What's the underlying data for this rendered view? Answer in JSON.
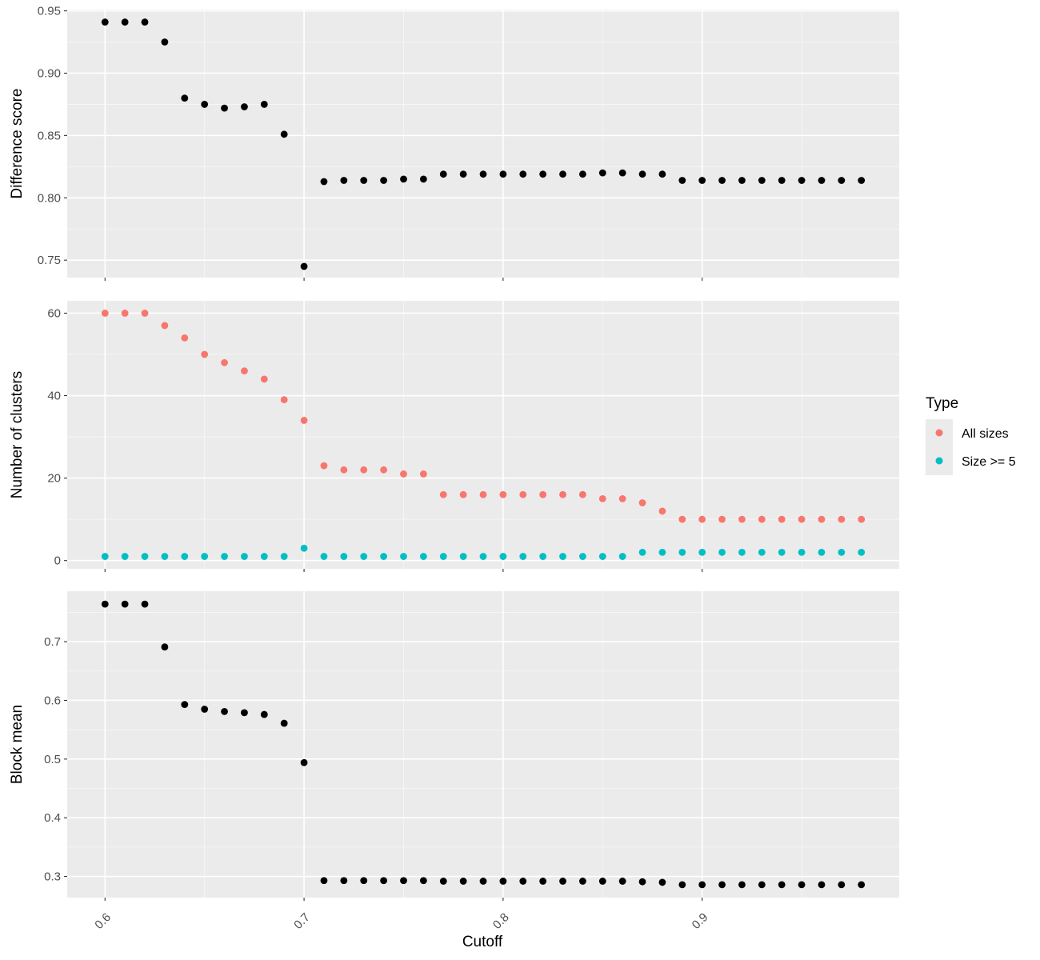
{
  "colors": {
    "panel_bg": "#ebebeb",
    "grid_major": "#ffffff",
    "point_default": "#000000",
    "all_sizes": "#f8766d",
    "size_ge_5": "#00bfc4"
  },
  "legend": {
    "title": "Type",
    "items": [
      {
        "label": "All sizes",
        "color": "#f8766d"
      },
      {
        "label": "Size >= 5",
        "color": "#00bfc4"
      }
    ]
  },
  "xaxis": {
    "label": "Cutoff",
    "ticks": [
      0.6,
      0.7,
      0.8,
      0.9
    ],
    "tick_labels": [
      "0.6",
      "0.7",
      "0.8",
      "0.9"
    ],
    "range": [
      0.581,
      0.999
    ]
  },
  "chart_data": [
    {
      "type": "scatter",
      "ylabel": "Difference score",
      "ylim": [
        0.736,
        0.951
      ],
      "yticks": [
        0.75,
        0.8,
        0.85,
        0.9,
        0.95
      ],
      "ytick_labels": [
        "0.75",
        "0.80",
        "0.85",
        "0.90",
        "0.95"
      ],
      "series": [
        {
          "color": "#000000",
          "x": [
            0.6,
            0.61,
            0.62,
            0.63,
            0.64,
            0.65,
            0.66,
            0.67,
            0.68,
            0.69,
            0.7,
            0.71,
            0.72,
            0.73,
            0.74,
            0.75,
            0.76,
            0.77,
            0.78,
            0.79,
            0.8,
            0.81,
            0.82,
            0.83,
            0.84,
            0.85,
            0.86,
            0.87,
            0.88,
            0.89,
            0.9,
            0.91,
            0.92,
            0.93,
            0.94,
            0.95,
            0.96,
            0.97,
            0.98
          ],
          "y": [
            0.941,
            0.941,
            0.941,
            0.925,
            0.88,
            0.875,
            0.872,
            0.873,
            0.875,
            0.851,
            0.745,
            0.813,
            0.814,
            0.814,
            0.814,
            0.815,
            0.815,
            0.819,
            0.819,
            0.819,
            0.819,
            0.819,
            0.819,
            0.819,
            0.819,
            0.82,
            0.82,
            0.819,
            0.819,
            0.814,
            0.814,
            0.814,
            0.814,
            0.814,
            0.814,
            0.814,
            0.814,
            0.814,
            0.814
          ]
        }
      ]
    },
    {
      "type": "scatter",
      "ylabel": "Number of clusters",
      "ylim": [
        -2,
        63
      ],
      "yticks": [
        0,
        20,
        40,
        60
      ],
      "ytick_labels": [
        "0",
        "20",
        "40",
        "60"
      ],
      "series": [
        {
          "name": "All sizes",
          "color": "#f8766d",
          "x": [
            0.6,
            0.61,
            0.62,
            0.63,
            0.64,
            0.65,
            0.66,
            0.67,
            0.68,
            0.69,
            0.7,
            0.71,
            0.72,
            0.73,
            0.74,
            0.75,
            0.76,
            0.77,
            0.78,
            0.79,
            0.8,
            0.81,
            0.82,
            0.83,
            0.84,
            0.85,
            0.86,
            0.87,
            0.88,
            0.89,
            0.9,
            0.91,
            0.92,
            0.93,
            0.94,
            0.95,
            0.96,
            0.97,
            0.98
          ],
          "y": [
            60,
            60,
            60,
            57,
            54,
            50,
            48,
            46,
            44,
            39,
            34,
            23,
            22,
            22,
            22,
            21,
            21,
            16,
            16,
            16,
            16,
            16,
            16,
            16,
            16,
            15,
            15,
            14,
            12,
            10,
            10,
            10,
            10,
            10,
            10,
            10,
            10,
            10,
            10
          ]
        },
        {
          "name": "Size >= 5",
          "color": "#00bfc4",
          "x": [
            0.6,
            0.61,
            0.62,
            0.63,
            0.64,
            0.65,
            0.66,
            0.67,
            0.68,
            0.69,
            0.7,
            0.71,
            0.72,
            0.73,
            0.74,
            0.75,
            0.76,
            0.77,
            0.78,
            0.79,
            0.8,
            0.81,
            0.82,
            0.83,
            0.84,
            0.85,
            0.86,
            0.87,
            0.88,
            0.89,
            0.9,
            0.91,
            0.92,
            0.93,
            0.94,
            0.95,
            0.96,
            0.97,
            0.98
          ],
          "y": [
            1,
            1,
            1,
            1,
            1,
            1,
            1,
            1,
            1,
            1,
            3,
            1,
            1,
            1,
            1,
            1,
            1,
            1,
            1,
            1,
            1,
            1,
            1,
            1,
            1,
            1,
            1,
            2,
            2,
            2,
            2,
            2,
            2,
            2,
            2,
            2,
            2,
            2,
            2
          ]
        }
      ]
    },
    {
      "type": "scatter",
      "ylabel": "Block mean",
      "ylim": [
        0.264,
        0.786
      ],
      "yticks": [
        0.3,
        0.4,
        0.5,
        0.6,
        0.7
      ],
      "ytick_labels": [
        "0.3",
        "0.4",
        "0.5",
        "0.6",
        "0.7"
      ],
      "series": [
        {
          "color": "#000000",
          "x": [
            0.6,
            0.61,
            0.62,
            0.63,
            0.64,
            0.65,
            0.66,
            0.67,
            0.68,
            0.69,
            0.7,
            0.71,
            0.72,
            0.73,
            0.74,
            0.75,
            0.76,
            0.77,
            0.78,
            0.79,
            0.8,
            0.81,
            0.82,
            0.83,
            0.84,
            0.85,
            0.86,
            0.87,
            0.88,
            0.89,
            0.9,
            0.91,
            0.92,
            0.93,
            0.94,
            0.95,
            0.96,
            0.97,
            0.98
          ],
          "y": [
            0.764,
            0.764,
            0.764,
            0.691,
            0.593,
            0.585,
            0.581,
            0.579,
            0.576,
            0.561,
            0.494,
            0.293,
            0.293,
            0.293,
            0.293,
            0.293,
            0.293,
            0.292,
            0.292,
            0.292,
            0.292,
            0.292,
            0.292,
            0.292,
            0.292,
            0.292,
            0.292,
            0.291,
            0.29,
            0.286,
            0.286,
            0.286,
            0.286,
            0.286,
            0.286,
            0.286,
            0.286,
            0.286,
            0.286
          ]
        }
      ]
    }
  ]
}
